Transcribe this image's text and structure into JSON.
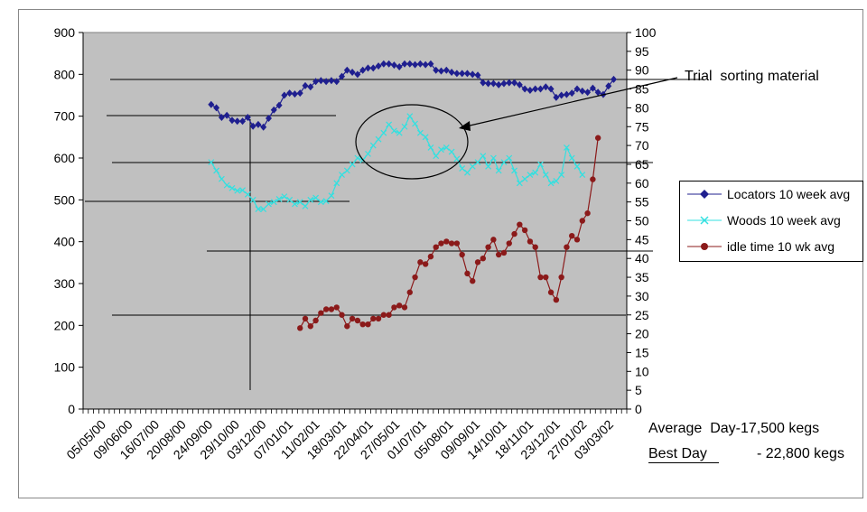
{
  "chart_data": {
    "type": "line",
    "x_ticks": [
      "05/05/00",
      "09/06/00",
      "16/07/00",
      "20/08/00",
      "24/09/00",
      "29/10/00",
      "03/12/00",
      "07/01/01",
      "11/02/01",
      "18/03/01",
      "22/04/01",
      "27/05/01",
      "01/07/01",
      "05/08/01",
      "09/09/01",
      "14/10/01",
      "18/11/01",
      "23/12/01",
      "27/01/02",
      "03/03/02"
    ],
    "y_left": {
      "ticks": [
        0,
        100,
        200,
        300,
        400,
        500,
        600,
        700,
        800,
        900
      ],
      "ylim": [
        0,
        900
      ]
    },
    "y_right": {
      "ticks": [
        0,
        5,
        10,
        15,
        20,
        25,
        30,
        35,
        40,
        45,
        50,
        55,
        60,
        65,
        70,
        75,
        80,
        85,
        90,
        95,
        100
      ],
      "ylim": [
        0,
        100
      ]
    },
    "grid": false,
    "series": [
      {
        "name": "Locators 10 week avg",
        "axis": "left",
        "color": "#1f1f8f",
        "marker": "diamond",
        "points": [
          [
            24,
            728
          ],
          [
            25,
            720
          ],
          [
            26,
            697
          ],
          [
            27,
            702
          ],
          [
            28,
            690
          ],
          [
            29,
            688
          ],
          [
            30,
            688
          ],
          [
            31,
            697
          ],
          [
            32,
            676
          ],
          [
            33,
            680
          ],
          [
            34,
            674
          ],
          [
            35,
            695
          ],
          [
            36,
            715
          ],
          [
            37,
            726
          ],
          [
            38,
            750
          ],
          [
            39,
            755
          ],
          [
            40,
            753
          ],
          [
            41,
            755
          ],
          [
            42,
            773
          ],
          [
            43,
            770
          ],
          [
            44,
            783
          ],
          [
            45,
            785
          ],
          [
            46,
            783
          ],
          [
            47,
            785
          ],
          [
            48,
            783
          ],
          [
            49,
            795
          ],
          [
            50,
            810
          ],
          [
            51,
            805
          ],
          [
            52,
            800
          ],
          [
            53,
            810
          ],
          [
            54,
            815
          ],
          [
            55,
            815
          ],
          [
            56,
            820
          ],
          [
            57,
            825
          ],
          [
            58,
            825
          ],
          [
            59,
            822
          ],
          [
            60,
            818
          ],
          [
            61,
            825
          ],
          [
            62,
            825
          ],
          [
            63,
            823
          ],
          [
            64,
            825
          ],
          [
            65,
            823
          ],
          [
            66,
            825
          ],
          [
            67,
            810
          ],
          [
            68,
            808
          ],
          [
            69,
            810
          ],
          [
            70,
            805
          ],
          [
            71,
            802
          ],
          [
            72,
            802
          ],
          [
            73,
            802
          ],
          [
            74,
            800
          ],
          [
            75,
            798
          ],
          [
            76,
            780
          ],
          [
            77,
            778
          ],
          [
            78,
            778
          ],
          [
            79,
            775
          ],
          [
            80,
            778
          ],
          [
            81,
            780
          ],
          [
            82,
            780
          ],
          [
            83,
            775
          ],
          [
            84,
            765
          ],
          [
            85,
            762
          ],
          [
            86,
            765
          ],
          [
            87,
            765
          ],
          [
            88,
            770
          ],
          [
            89,
            765
          ],
          [
            90,
            745
          ],
          [
            91,
            750
          ],
          [
            92,
            752
          ],
          [
            93,
            755
          ],
          [
            94,
            765
          ],
          [
            95,
            760
          ],
          [
            96,
            757
          ],
          [
            97,
            767
          ],
          [
            98,
            757
          ],
          [
            99,
            752
          ],
          [
            100,
            772
          ],
          [
            101,
            788
          ]
        ]
      },
      {
        "name": "Woods 10 week avg",
        "axis": "left",
        "color": "#33e0e0",
        "marker": "x",
        "points": [
          [
            24,
            590
          ],
          [
            25,
            570
          ],
          [
            26,
            550
          ],
          [
            27,
            535
          ],
          [
            28,
            528
          ],
          [
            29,
            522
          ],
          [
            30,
            523
          ],
          [
            31,
            513
          ],
          [
            32,
            500
          ],
          [
            33,
            478
          ],
          [
            34,
            478
          ],
          [
            35,
            490
          ],
          [
            36,
            495
          ],
          [
            37,
            502
          ],
          [
            38,
            508
          ],
          [
            39,
            500
          ],
          [
            40,
            490
          ],
          [
            41,
            495
          ],
          [
            42,
            485
          ],
          [
            43,
            500
          ],
          [
            44,
            505
          ],
          [
            45,
            495
          ],
          [
            46,
            497
          ],
          [
            47,
            510
          ],
          [
            48,
            540
          ],
          [
            49,
            560
          ],
          [
            50,
            570
          ],
          [
            51,
            585
          ],
          [
            52,
            600
          ],
          [
            53,
            595
          ],
          [
            54,
            610
          ],
          [
            55,
            630
          ],
          [
            56,
            645
          ],
          [
            57,
            660
          ],
          [
            58,
            680
          ],
          [
            59,
            665
          ],
          [
            60,
            660
          ],
          [
            61,
            675
          ],
          [
            62,
            700
          ],
          [
            63,
            682
          ],
          [
            64,
            660
          ],
          [
            65,
            650
          ],
          [
            66,
            625
          ],
          [
            67,
            605
          ],
          [
            68,
            620
          ],
          [
            69,
            625
          ],
          [
            70,
            615
          ],
          [
            71,
            598
          ],
          [
            72,
            575
          ],
          [
            73,
            565
          ],
          [
            74,
            580
          ],
          [
            75,
            590
          ],
          [
            76,
            605
          ],
          [
            77,
            580
          ],
          [
            78,
            600
          ],
          [
            79,
            570
          ],
          [
            80,
            590
          ],
          [
            81,
            600
          ],
          [
            82,
            570
          ],
          [
            83,
            540
          ],
          [
            84,
            550
          ],
          [
            85,
            560
          ],
          [
            86,
            565
          ],
          [
            87,
            585
          ],
          [
            88,
            560
          ],
          [
            89,
            540
          ],
          [
            90,
            545
          ],
          [
            91,
            560
          ],
          [
            92,
            625
          ],
          [
            93,
            600
          ],
          [
            94,
            580
          ],
          [
            95,
            560
          ]
        ]
      },
      {
        "name": "idle time 10 wk avg",
        "axis": "right",
        "color": "#8b1a1a",
        "marker": "circle",
        "points": [
          [
            41,
            21.5
          ],
          [
            42,
            24
          ],
          [
            43,
            22
          ],
          [
            44,
            23.5
          ],
          [
            45,
            25.5
          ],
          [
            46,
            26.5
          ],
          [
            47,
            26.5
          ],
          [
            48,
            27
          ],
          [
            49,
            25
          ],
          [
            50,
            22
          ],
          [
            51,
            24
          ],
          [
            52,
            23.5
          ],
          [
            53,
            22.5
          ],
          [
            54,
            22.5
          ],
          [
            55,
            24
          ],
          [
            56,
            24
          ],
          [
            57,
            25
          ],
          [
            58,
            25
          ],
          [
            59,
            27
          ],
          [
            60,
            27.5
          ],
          [
            61,
            27
          ],
          [
            62,
            31
          ],
          [
            63,
            35
          ],
          [
            64,
            39
          ],
          [
            65,
            38.5
          ],
          [
            66,
            40.5
          ],
          [
            67,
            43
          ],
          [
            68,
            44
          ],
          [
            69,
            44.5
          ],
          [
            70,
            44
          ],
          [
            71,
            44
          ],
          [
            72,
            41
          ],
          [
            73,
            36
          ],
          [
            74,
            34
          ],
          [
            75,
            39
          ],
          [
            76,
            40
          ],
          [
            77,
            43
          ],
          [
            78,
            45
          ],
          [
            79,
            41
          ],
          [
            80,
            41.5
          ],
          [
            81,
            44
          ],
          [
            82,
            46.5
          ],
          [
            83,
            49
          ],
          [
            84,
            47.5
          ],
          [
            85,
            44.5
          ],
          [
            86,
            43
          ],
          [
            87,
            35
          ],
          [
            88,
            35
          ],
          [
            89,
            31
          ],
          [
            90,
            29
          ],
          [
            91,
            35
          ],
          [
            92,
            43
          ],
          [
            93,
            46
          ],
          [
            94,
            45
          ],
          [
            95,
            50
          ],
          [
            96,
            52
          ],
          [
            97,
            61
          ],
          [
            98,
            72
          ]
        ]
      }
    ],
    "annotation": "Trial  sorting material",
    "footer": {
      "line1": "Average  Day-17,500 kegs",
      "line2_label": "Best Day",
      "line2_value": "- 22,800 kegs"
    }
  }
}
